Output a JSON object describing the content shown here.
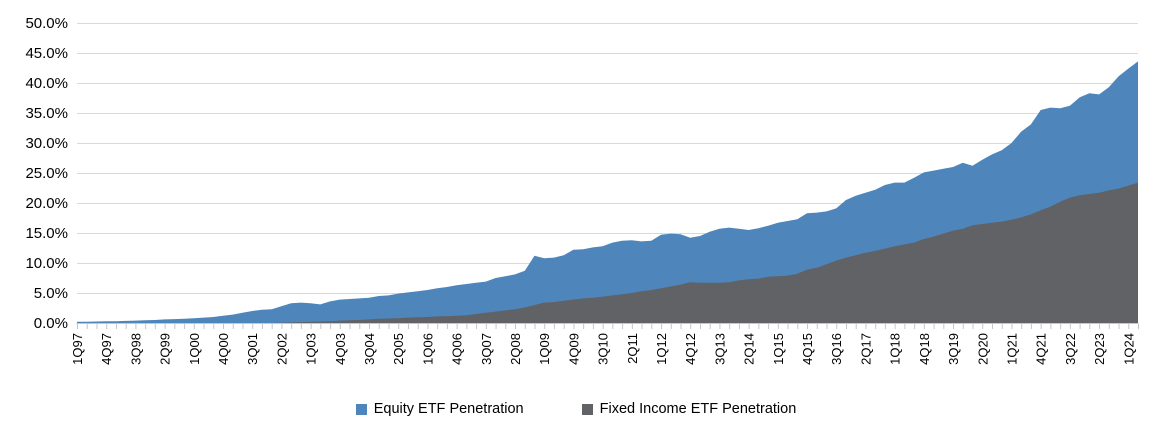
{
  "chart_data": {
    "type": "area",
    "title": "",
    "xlabel": "",
    "ylabel": "",
    "ylim": [
      0,
      50
    ],
    "y_tick_step": 5,
    "y_tick_labels": [
      "0.0%",
      "5.0%",
      "10.0%",
      "15.0%",
      "20.0%",
      "25.0%",
      "30.0%",
      "35.0%",
      "40.0%",
      "45.0%",
      "50.0%"
    ],
    "x_tick_interval": 3,
    "grid": "horizontal",
    "legend_position": "bottom",
    "overlap": true,
    "categories": [
      "1Q97",
      "2Q97",
      "3Q97",
      "4Q97",
      "1Q98",
      "2Q98",
      "3Q98",
      "4Q98",
      "1Q99",
      "2Q99",
      "3Q99",
      "4Q99",
      "1Q00",
      "2Q00",
      "3Q00",
      "4Q00",
      "1Q01",
      "2Q01",
      "3Q01",
      "4Q01",
      "1Q02",
      "2Q02",
      "3Q02",
      "4Q02",
      "1Q03",
      "2Q03",
      "3Q03",
      "4Q03",
      "1Q04",
      "2Q04",
      "3Q04",
      "4Q04",
      "1Q05",
      "2Q05",
      "3Q05",
      "4Q05",
      "1Q06",
      "2Q06",
      "3Q06",
      "4Q06",
      "1Q07",
      "2Q07",
      "3Q07",
      "4Q07",
      "1Q08",
      "2Q08",
      "3Q08",
      "4Q08",
      "1Q09",
      "2Q09",
      "3Q09",
      "4Q09",
      "1Q10",
      "2Q10",
      "3Q10",
      "4Q10",
      "1Q11",
      "2Q11",
      "3Q11",
      "4Q11",
      "1Q12",
      "2Q12",
      "3Q12",
      "4Q12",
      "1Q13",
      "2Q13",
      "3Q13",
      "4Q13",
      "1Q14",
      "2Q14",
      "3Q14",
      "4Q14",
      "1Q15",
      "2Q15",
      "3Q15",
      "4Q15",
      "1Q16",
      "2Q16",
      "3Q16",
      "4Q16",
      "1Q17",
      "2Q17",
      "3Q17",
      "4Q17",
      "1Q18",
      "2Q18",
      "3Q18",
      "4Q18",
      "1Q19",
      "2Q19",
      "3Q19",
      "4Q19",
      "1Q20",
      "2Q20",
      "3Q20",
      "4Q20",
      "1Q21",
      "2Q21",
      "3Q21",
      "4Q21",
      "1Q22",
      "2Q22",
      "3Q22",
      "4Q22",
      "1Q23",
      "2Q23",
      "3Q23",
      "4Q23",
      "1Q24",
      "2Q24"
    ],
    "series": [
      {
        "name": "Equity ETF Penetration",
        "color": "#4E86BC",
        "values": [
          0.2,
          0.2,
          0.25,
          0.3,
          0.3,
          0.35,
          0.4,
          0.45,
          0.5,
          0.6,
          0.65,
          0.7,
          0.8,
          0.9,
          1.0,
          1.2,
          1.4,
          1.7,
          2.0,
          2.2,
          2.3,
          2.8,
          3.3,
          3.4,
          3.3,
          3.1,
          3.6,
          3.9,
          4.0,
          4.1,
          4.2,
          4.5,
          4.6,
          4.9,
          5.1,
          5.3,
          5.5,
          5.8,
          6.0,
          6.3,
          6.5,
          6.7,
          6.9,
          7.5,
          7.8,
          8.1,
          8.7,
          11.2,
          10.8,
          10.9,
          11.3,
          12.2,
          12.3,
          12.6,
          12.8,
          13.4,
          13.7,
          13.8,
          13.6,
          13.7,
          14.7,
          14.9,
          14.8,
          14.2,
          14.5,
          15.2,
          15.7,
          15.9,
          15.7,
          15.5,
          15.8,
          16.2,
          16.7,
          17.0,
          17.3,
          18.3,
          18.4,
          18.6,
          19.1,
          20.5,
          21.2,
          21.7,
          22.2,
          23.0,
          23.4,
          23.4,
          24.2,
          25.1,
          25.4,
          25.7,
          26.0,
          26.7,
          26.2,
          27.2,
          28.1,
          28.8,
          30.0,
          31.9,
          33.1,
          35.5,
          35.9,
          35.8,
          36.2,
          37.6,
          38.3,
          38.1,
          39.3,
          41.1,
          42.4,
          43.6
        ]
      },
      {
        "name": "Fixed Income ETF Penetration",
        "color": "#606265",
        "values": [
          0,
          0,
          0,
          0,
          0,
          0,
          0,
          0,
          0,
          0,
          0,
          0,
          0,
          0,
          0,
          0,
          0,
          0,
          0,
          0,
          0,
          0.05,
          0.1,
          0.15,
          0.2,
          0.25,
          0.3,
          0.4,
          0.45,
          0.5,
          0.6,
          0.7,
          0.75,
          0.8,
          0.9,
          0.95,
          1.0,
          1.1,
          1.15,
          1.2,
          1.3,
          1.5,
          1.7,
          1.9,
          2.1,
          2.3,
          2.6,
          3.0,
          3.4,
          3.5,
          3.7,
          3.9,
          4.1,
          4.2,
          4.4,
          4.6,
          4.8,
          5.0,
          5.3,
          5.5,
          5.8,
          6.1,
          6.4,
          6.8,
          6.7,
          6.7,
          6.7,
          6.8,
          7.1,
          7.3,
          7.4,
          7.7,
          7.8,
          7.9,
          8.2,
          8.9,
          9.2,
          9.8,
          10.4,
          10.9,
          11.3,
          11.7,
          12.0,
          12.4,
          12.8,
          13.1,
          13.4,
          14.0,
          14.4,
          14.9,
          15.4,
          15.7,
          16.3,
          16.5,
          16.7,
          16.9,
          17.2,
          17.6,
          18.1,
          18.8,
          19.4,
          20.2,
          20.9,
          21.3,
          21.5,
          21.7,
          22.1,
          22.4,
          22.9,
          23.4
        ]
      }
    ],
    "colors": {
      "gridline": "#D9D9D9",
      "axis": "#C6C6C6",
      "text": "#000000"
    }
  }
}
